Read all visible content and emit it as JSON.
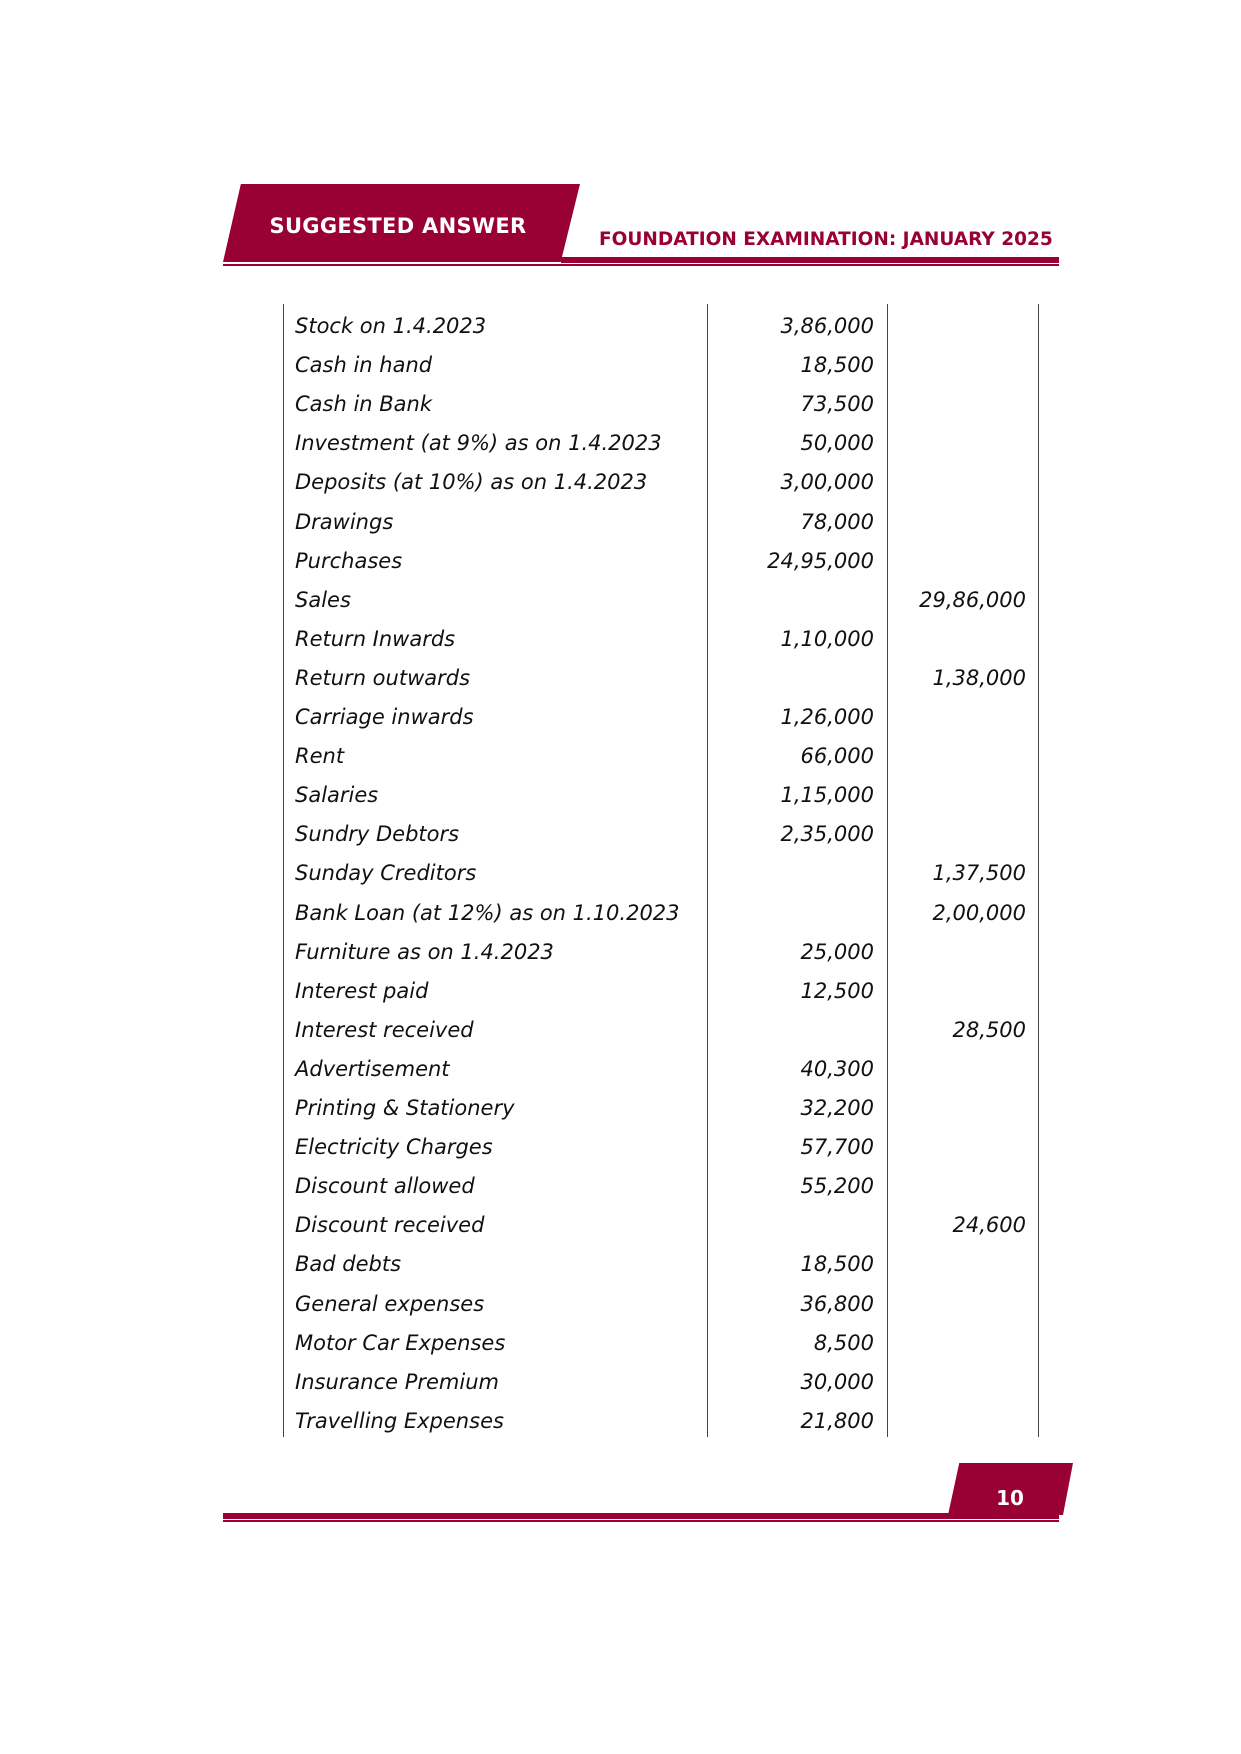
{
  "header": {
    "tab_label": "SUGGESTED ANSWER",
    "exam_title": "FOUNDATION EXAMINATION: JANUARY 2025",
    "accent_color": "#990033"
  },
  "table": {
    "rows": [
      {
        "particular": "Stock on 1.4.2023",
        "debit": "3,86,000",
        "credit": ""
      },
      {
        "particular": "Cash in hand",
        "debit": "18,500",
        "credit": ""
      },
      {
        "particular": "Cash in Bank",
        "debit": "73,500",
        "credit": ""
      },
      {
        "particular": "Investment (at 9%) as on 1.4.2023",
        "debit": "50,000",
        "credit": ""
      },
      {
        "particular": "Deposits (at 10%) as on 1.4.2023",
        "debit": "3,00,000",
        "credit": ""
      },
      {
        "particular": "Drawings",
        "debit": "78,000",
        "credit": ""
      },
      {
        "particular": "Purchases",
        "debit": "24,95,000",
        "credit": ""
      },
      {
        "particular": "Sales",
        "debit": "",
        "credit": "29,86,000"
      },
      {
        "particular": "Return Inwards",
        "debit": "1,10,000",
        "credit": ""
      },
      {
        "particular": "Return outwards",
        "debit": "",
        "credit": "1,38,000"
      },
      {
        "particular": "Carriage inwards",
        "debit": "1,26,000",
        "credit": ""
      },
      {
        "particular": "Rent",
        "debit": "66,000",
        "credit": ""
      },
      {
        "particular": "Salaries",
        "debit": "1,15,000",
        "credit": ""
      },
      {
        "particular": "Sundry Debtors",
        "debit": "2,35,000",
        "credit": ""
      },
      {
        "particular": "Sunday Creditors",
        "debit": "",
        "credit": "1,37,500"
      },
      {
        "particular": "Bank Loan (at 12%) as on 1.10.2023",
        "debit": "",
        "credit": "2,00,000"
      },
      {
        "particular": "Furniture as on 1.4.2023",
        "debit": "25,000",
        "credit": ""
      },
      {
        "particular": "Interest paid",
        "debit": "12,500",
        "credit": ""
      },
      {
        "particular": "Interest received",
        "debit": "",
        "credit": "28,500"
      },
      {
        "particular": "Advertisement",
        "debit": "40,300",
        "credit": ""
      },
      {
        "particular": "Printing & Stationery",
        "debit": "32,200",
        "credit": ""
      },
      {
        "particular": "Electricity Charges",
        "debit": "57,700",
        "credit": ""
      },
      {
        "particular": "Discount allowed",
        "debit": "55,200",
        "credit": ""
      },
      {
        "particular": "Discount received",
        "debit": "",
        "credit": "24,600"
      },
      {
        "particular": "Bad debts",
        "debit": "18,500",
        "credit": ""
      },
      {
        "particular": "General expenses",
        "debit": "36,800",
        "credit": ""
      },
      {
        "particular": "Motor Car Expenses",
        "debit": "8,500",
        "credit": ""
      },
      {
        "particular": "Insurance Premium",
        "debit": "30,000",
        "credit": ""
      },
      {
        "particular": "Travelling Expenses",
        "debit": "21,800",
        "credit": ""
      }
    ]
  },
  "footer": {
    "page_number": "10"
  }
}
